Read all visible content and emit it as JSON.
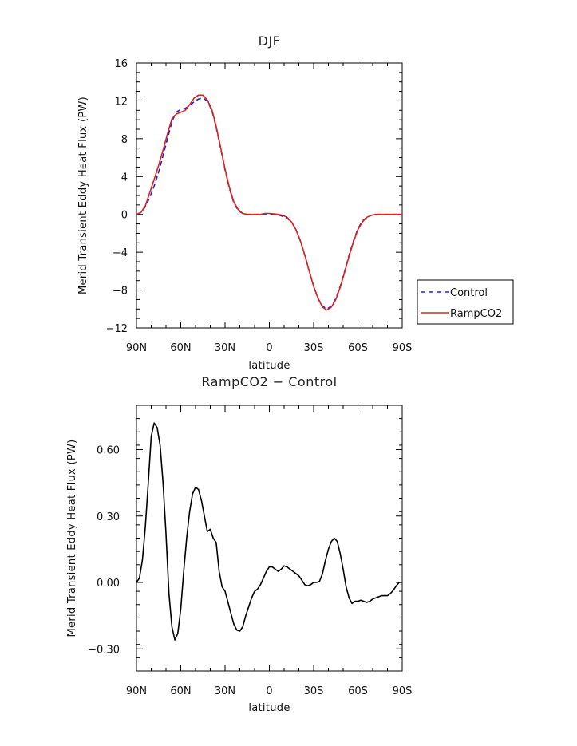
{
  "chart_data": [
    {
      "type": "line",
      "title": "DJF",
      "xlabel": "latitude",
      "ylabel": "Merid Transient Eddy Heat Flux (PW)",
      "xlim": [
        90,
        -90
      ],
      "ylim": [
        -12,
        16
      ],
      "x_ticks": [
        90,
        60,
        30,
        0,
        -30,
        -60,
        -90
      ],
      "x_tick_labels": [
        "90N",
        "60N",
        "30N",
        "0",
        "30S",
        "60S",
        "90S"
      ],
      "y_ticks": [
        -12,
        -8,
        -4,
        0,
        4,
        8,
        12,
        16
      ],
      "y_tick_labels": [
        "−12",
        "−8",
        "−4",
        "0",
        "4",
        "8",
        "12",
        "16"
      ],
      "legend_position": "right",
      "series": [
        {
          "name": "Control",
          "color": "#1f1fd6",
          "dash": "dashed",
          "x": [
            90,
            87,
            84,
            81,
            78,
            75,
            72,
            69,
            66,
            63,
            60,
            57,
            54,
            51,
            48,
            45,
            42,
            39,
            36,
            33,
            30,
            27,
            24,
            21,
            18,
            15,
            12,
            9,
            6,
            3,
            0,
            -3,
            -6,
            -9,
            -12,
            -15,
            -18,
            -21,
            -24,
            -27,
            -30,
            -33,
            -36,
            -39,
            -42,
            -45,
            -48,
            -51,
            -54,
            -57,
            -60,
            -63,
            -66,
            -69,
            -72,
            -75,
            -78,
            -81,
            -84,
            -87,
            -90
          ],
          "y": [
            0,
            0.2,
            0.8,
            1.8,
            3.0,
            4.5,
            6.2,
            8.0,
            9.8,
            10.8,
            11.1,
            11.2,
            11.5,
            11.9,
            12.2,
            12.3,
            12.0,
            11.0,
            9.2,
            7.0,
            4.7,
            2.7,
            1.2,
            0.4,
            0.1,
            0.0,
            0.0,
            0.0,
            0.0,
            0.05,
            0.05,
            0.0,
            -0.05,
            -0.2,
            -0.4,
            -0.8,
            -1.6,
            -2.8,
            -4.3,
            -6.0,
            -7.6,
            -8.9,
            -9.7,
            -10.0,
            -9.7,
            -8.9,
            -7.6,
            -6.0,
            -4.3,
            -2.8,
            -1.5,
            -0.7,
            -0.3,
            -0.1,
            0,
            0,
            0,
            0,
            0,
            0,
            0
          ]
        },
        {
          "name": "RampCO2",
          "color": "#e0201b",
          "dash": "solid",
          "x": [
            90,
            87,
            84,
            81,
            78,
            75,
            72,
            69,
            66,
            63,
            60,
            57,
            54,
            51,
            48,
            45,
            42,
            39,
            36,
            33,
            30,
            27,
            24,
            21,
            18,
            15,
            12,
            9,
            6,
            3,
            0,
            -3,
            -6,
            -9,
            -12,
            -15,
            -18,
            -21,
            -24,
            -27,
            -30,
            -33,
            -36,
            -39,
            -42,
            -45,
            -48,
            -51,
            -54,
            -57,
            -60,
            -63,
            -66,
            -69,
            -72,
            -75,
            -78,
            -81,
            -84,
            -87,
            -90
          ],
          "y": [
            0,
            0.2,
            0.9,
            2.3,
            3.7,
            5.2,
            6.8,
            8.5,
            10.1,
            10.6,
            10.8,
            11.0,
            11.6,
            12.3,
            12.6,
            12.6,
            12.1,
            11.1,
            9.3,
            7.1,
            4.8,
            2.8,
            1.3,
            0.5,
            0.1,
            0.0,
            0.0,
            0.0,
            0.0,
            0.1,
            0.1,
            0.05,
            0.0,
            -0.1,
            -0.3,
            -0.8,
            -1.6,
            -2.8,
            -4.3,
            -6.0,
            -7.6,
            -8.9,
            -9.8,
            -10.1,
            -9.8,
            -9.0,
            -7.7,
            -6.1,
            -4.4,
            -2.9,
            -1.6,
            -0.8,
            -0.3,
            -0.1,
            0,
            0,
            0,
            0,
            0,
            0,
            0
          ]
        }
      ]
    },
    {
      "type": "line",
      "title": "RampCO2 − Control",
      "xlabel": "latitude",
      "ylabel": "Merid Transient Eddy Heat Flux (PW)",
      "xlim": [
        90,
        -90
      ],
      "ylim": [
        -0.4,
        0.8
      ],
      "x_ticks": [
        90,
        60,
        30,
        0,
        -30,
        -60,
        -90
      ],
      "x_tick_labels": [
        "90N",
        "60N",
        "30N",
        "0",
        "30S",
        "60S",
        "90S"
      ],
      "y_ticks": [
        -0.3,
        0,
        0.3,
        0.6
      ],
      "y_tick_labels": [
        "−0.30",
        "0.00",
        "0.30",
        "0.60"
      ],
      "series": [
        {
          "color": "#000000",
          "dash": "solid",
          "x": [
            90,
            88,
            86,
            84,
            82,
            80,
            78,
            76,
            74,
            72,
            70,
            68,
            66,
            64,
            62,
            60,
            58,
            56,
            54,
            52,
            50,
            48,
            46,
            44,
            42,
            40,
            38,
            36,
            34,
            32,
            30,
            28,
            26,
            24,
            22,
            20,
            18,
            16,
            14,
            12,
            10,
            8,
            6,
            4,
            2,
            0,
            -2,
            -4,
            -6,
            -8,
            -10,
            -12,
            -14,
            -16,
            -18,
            -20,
            -22,
            -24,
            -26,
            -28,
            -30,
            -32,
            -34,
            -36,
            -38,
            -40,
            -42,
            -44,
            -46,
            -48,
            -50,
            -52,
            -54,
            -56,
            -58,
            -60,
            -62,
            -64,
            -66,
            -68,
            -70,
            -72,
            -74,
            -76,
            -78,
            -80,
            -82,
            -84,
            -86,
            -88,
            -90
          ],
          "y": [
            0,
            0.02,
            0.1,
            0.25,
            0.45,
            0.66,
            0.72,
            0.7,
            0.62,
            0.45,
            0.22,
            -0.05,
            -0.2,
            -0.26,
            -0.23,
            -0.12,
            0.05,
            0.2,
            0.32,
            0.4,
            0.43,
            0.42,
            0.37,
            0.3,
            0.23,
            0.24,
            0.2,
            0.18,
            0.05,
            -0.02,
            -0.04,
            -0.09,
            -0.14,
            -0.19,
            -0.215,
            -0.22,
            -0.2,
            -0.15,
            -0.11,
            -0.07,
            -0.04,
            -0.03,
            -0.01,
            0.02,
            0.05,
            0.07,
            0.07,
            0.06,
            0.05,
            0.06,
            0.075,
            0.07,
            0.06,
            0.05,
            0.04,
            0.03,
            0.01,
            -0.01,
            -0.015,
            -0.01,
            0.0,
            0.0,
            0.005,
            0.04,
            0.1,
            0.15,
            0.185,
            0.2,
            0.185,
            0.13,
            0.06,
            -0.02,
            -0.07,
            -0.095,
            -0.085,
            -0.085,
            -0.08,
            -0.085,
            -0.09,
            -0.085,
            -0.075,
            -0.07,
            -0.065,
            -0.06,
            -0.06,
            -0.06,
            -0.05,
            -0.035,
            -0.015,
            0.0,
            0.0
          ]
        }
      ]
    }
  ]
}
